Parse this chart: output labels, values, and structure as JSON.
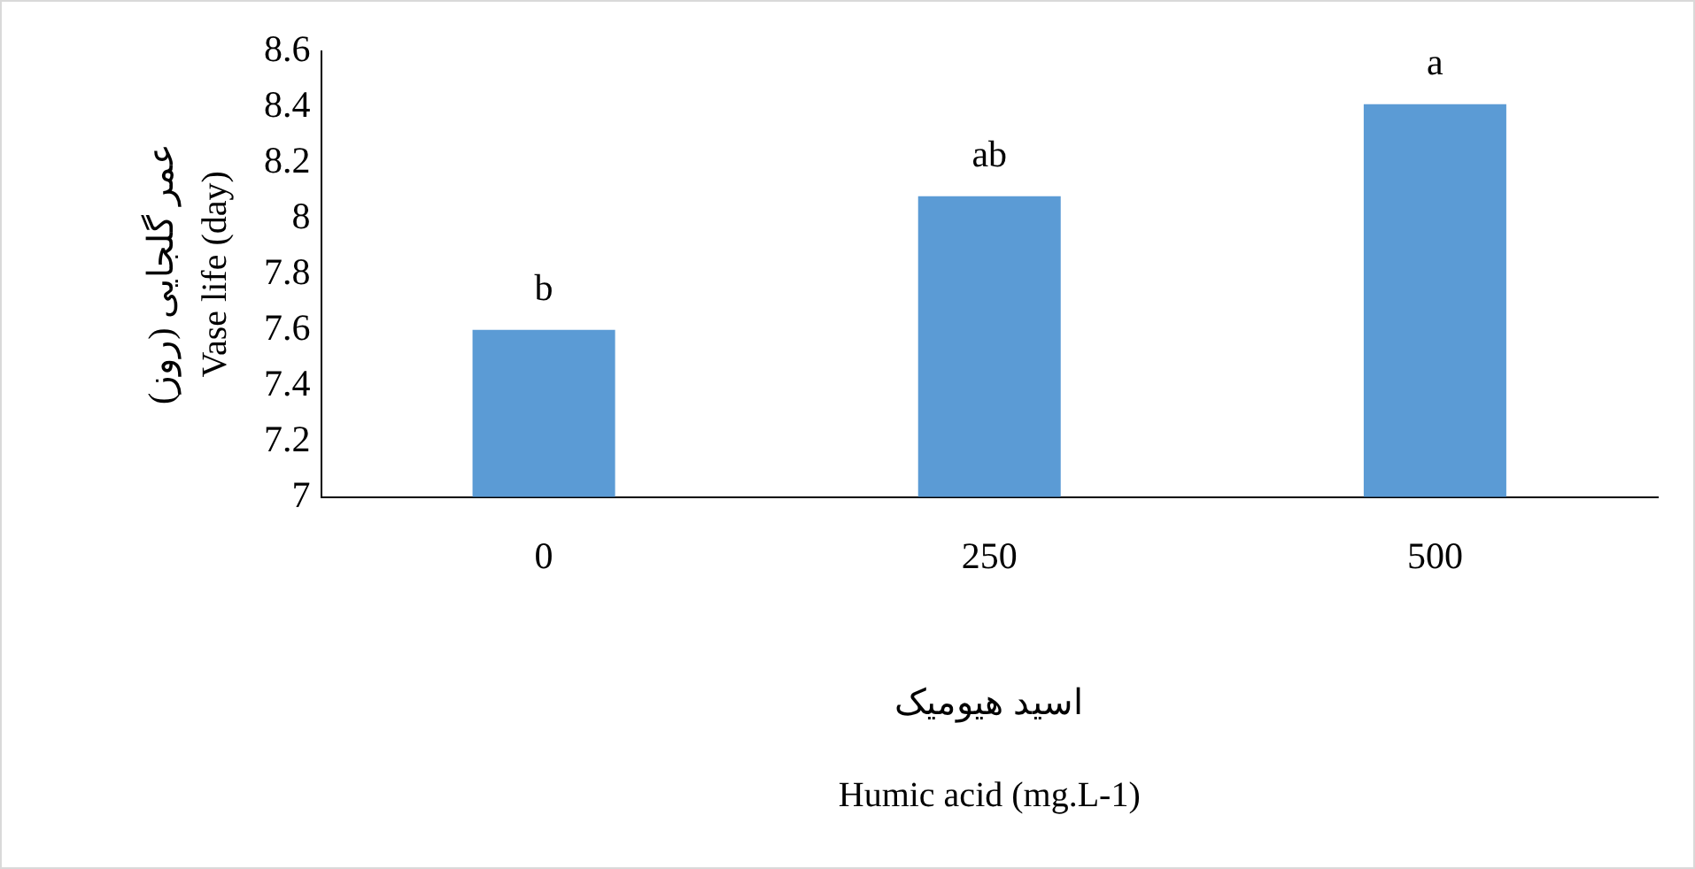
{
  "chart_data": {
    "type": "bar",
    "categories": [
      "0",
      "250",
      "500"
    ],
    "values": [
      7.6,
      8.08,
      8.41
    ],
    "color": "#5b9bd5",
    "xlabel": "اسید هیومیک\nHumic acid (mg.L-1)",
    "ylabel": "عمر گلجایی (روز)\nVase life (day)",
    "ylim": [
      7,
      8.6
    ],
    "yticks": [
      7,
      7.2,
      7.4,
      7.6,
      7.8,
      8,
      8.2,
      8.4,
      8.6
    ],
    "grid": false,
    "legend": false,
    "annotations": [
      {
        "text": "b",
        "x": "0",
        "y": 7.6
      },
      {
        "text": "ab",
        "x": "250",
        "y": 8.08
      },
      {
        "text": "a",
        "x": "500",
        "y": 8.41
      }
    ]
  }
}
